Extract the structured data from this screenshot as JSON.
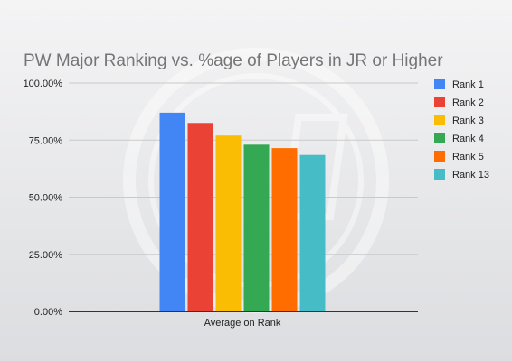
{
  "chart_data": {
    "type": "bar",
    "title": "PW Major Ranking vs. %age of Players in JR or Higher",
    "categories": [
      "Average on Rank"
    ],
    "series": [
      {
        "name": "Rank 1",
        "values": [
          87.0
        ],
        "color": "#4285f4"
      },
      {
        "name": "Rank 2",
        "values": [
          82.5
        ],
        "color": "#ea4335"
      },
      {
        "name": "Rank 3",
        "values": [
          77.0
        ],
        "color": "#fbbc04"
      },
      {
        "name": "Rank 4",
        "values": [
          73.0
        ],
        "color": "#34a853"
      },
      {
        "name": "Rank 5",
        "values": [
          71.5
        ],
        "color": "#ff6d01"
      },
      {
        "name": "Rank 13",
        "values": [
          68.5
        ],
        "color": "#46bdc6"
      }
    ],
    "yticks": [
      "0.00%",
      "25.00%",
      "50.00%",
      "75.00%",
      "100.00%"
    ],
    "ylim": [
      0,
      100
    ],
    "grid": true,
    "legend": "right",
    "xlabel": "",
    "ylabel": ""
  }
}
